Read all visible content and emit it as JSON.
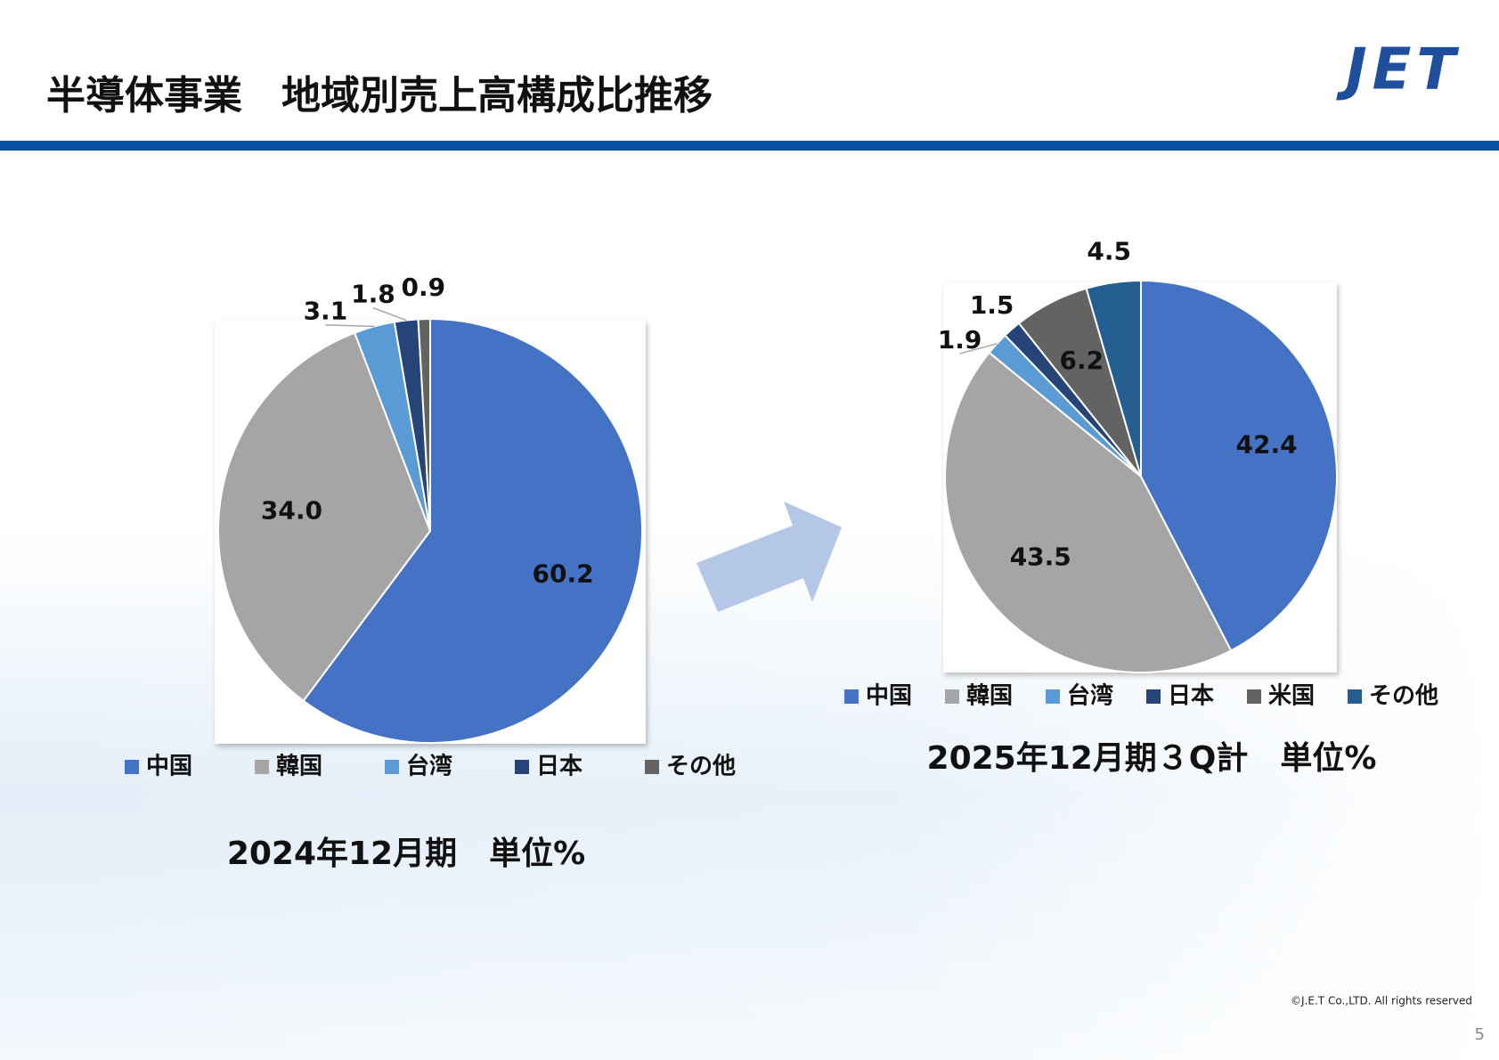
{
  "header": {
    "title": "半導体事業　地域別売上高構成比推移",
    "logo": "JET"
  },
  "chart_data": [
    {
      "type": "pie",
      "categories": [
        "中国",
        "韓国",
        "台湾",
        "日本",
        "その他"
      ],
      "values": [
        60.2,
        34.0,
        3.1,
        1.8,
        0.9
      ],
      "value_labels": [
        "60.2",
        "34.0",
        "3.1",
        "1.8",
        "0.9"
      ],
      "colors": [
        "#4472c4",
        "#a5a5a5",
        "#5b9bd5",
        "#264478",
        "#636363"
      ],
      "caption": "2024年12月期　単位%"
    },
    {
      "type": "pie",
      "categories": [
        "中国",
        "韓国",
        "台湾",
        "日本",
        "米国",
        "その他"
      ],
      "values": [
        42.4,
        43.5,
        1.9,
        1.5,
        6.2,
        4.5
      ],
      "value_labels": [
        "42.4",
        "43.5",
        "1.9",
        "1.5",
        "6.2",
        "4.5"
      ],
      "colors": [
        "#4472c4",
        "#a5a5a5",
        "#5b9bd5",
        "#264478",
        "#636363",
        "#255e91"
      ],
      "caption": "2025年12月期３Q計　単位%"
    }
  ],
  "footer": {
    "copyright": "©J.E.T Co.,LTD. All rights reserved",
    "page": "5"
  }
}
